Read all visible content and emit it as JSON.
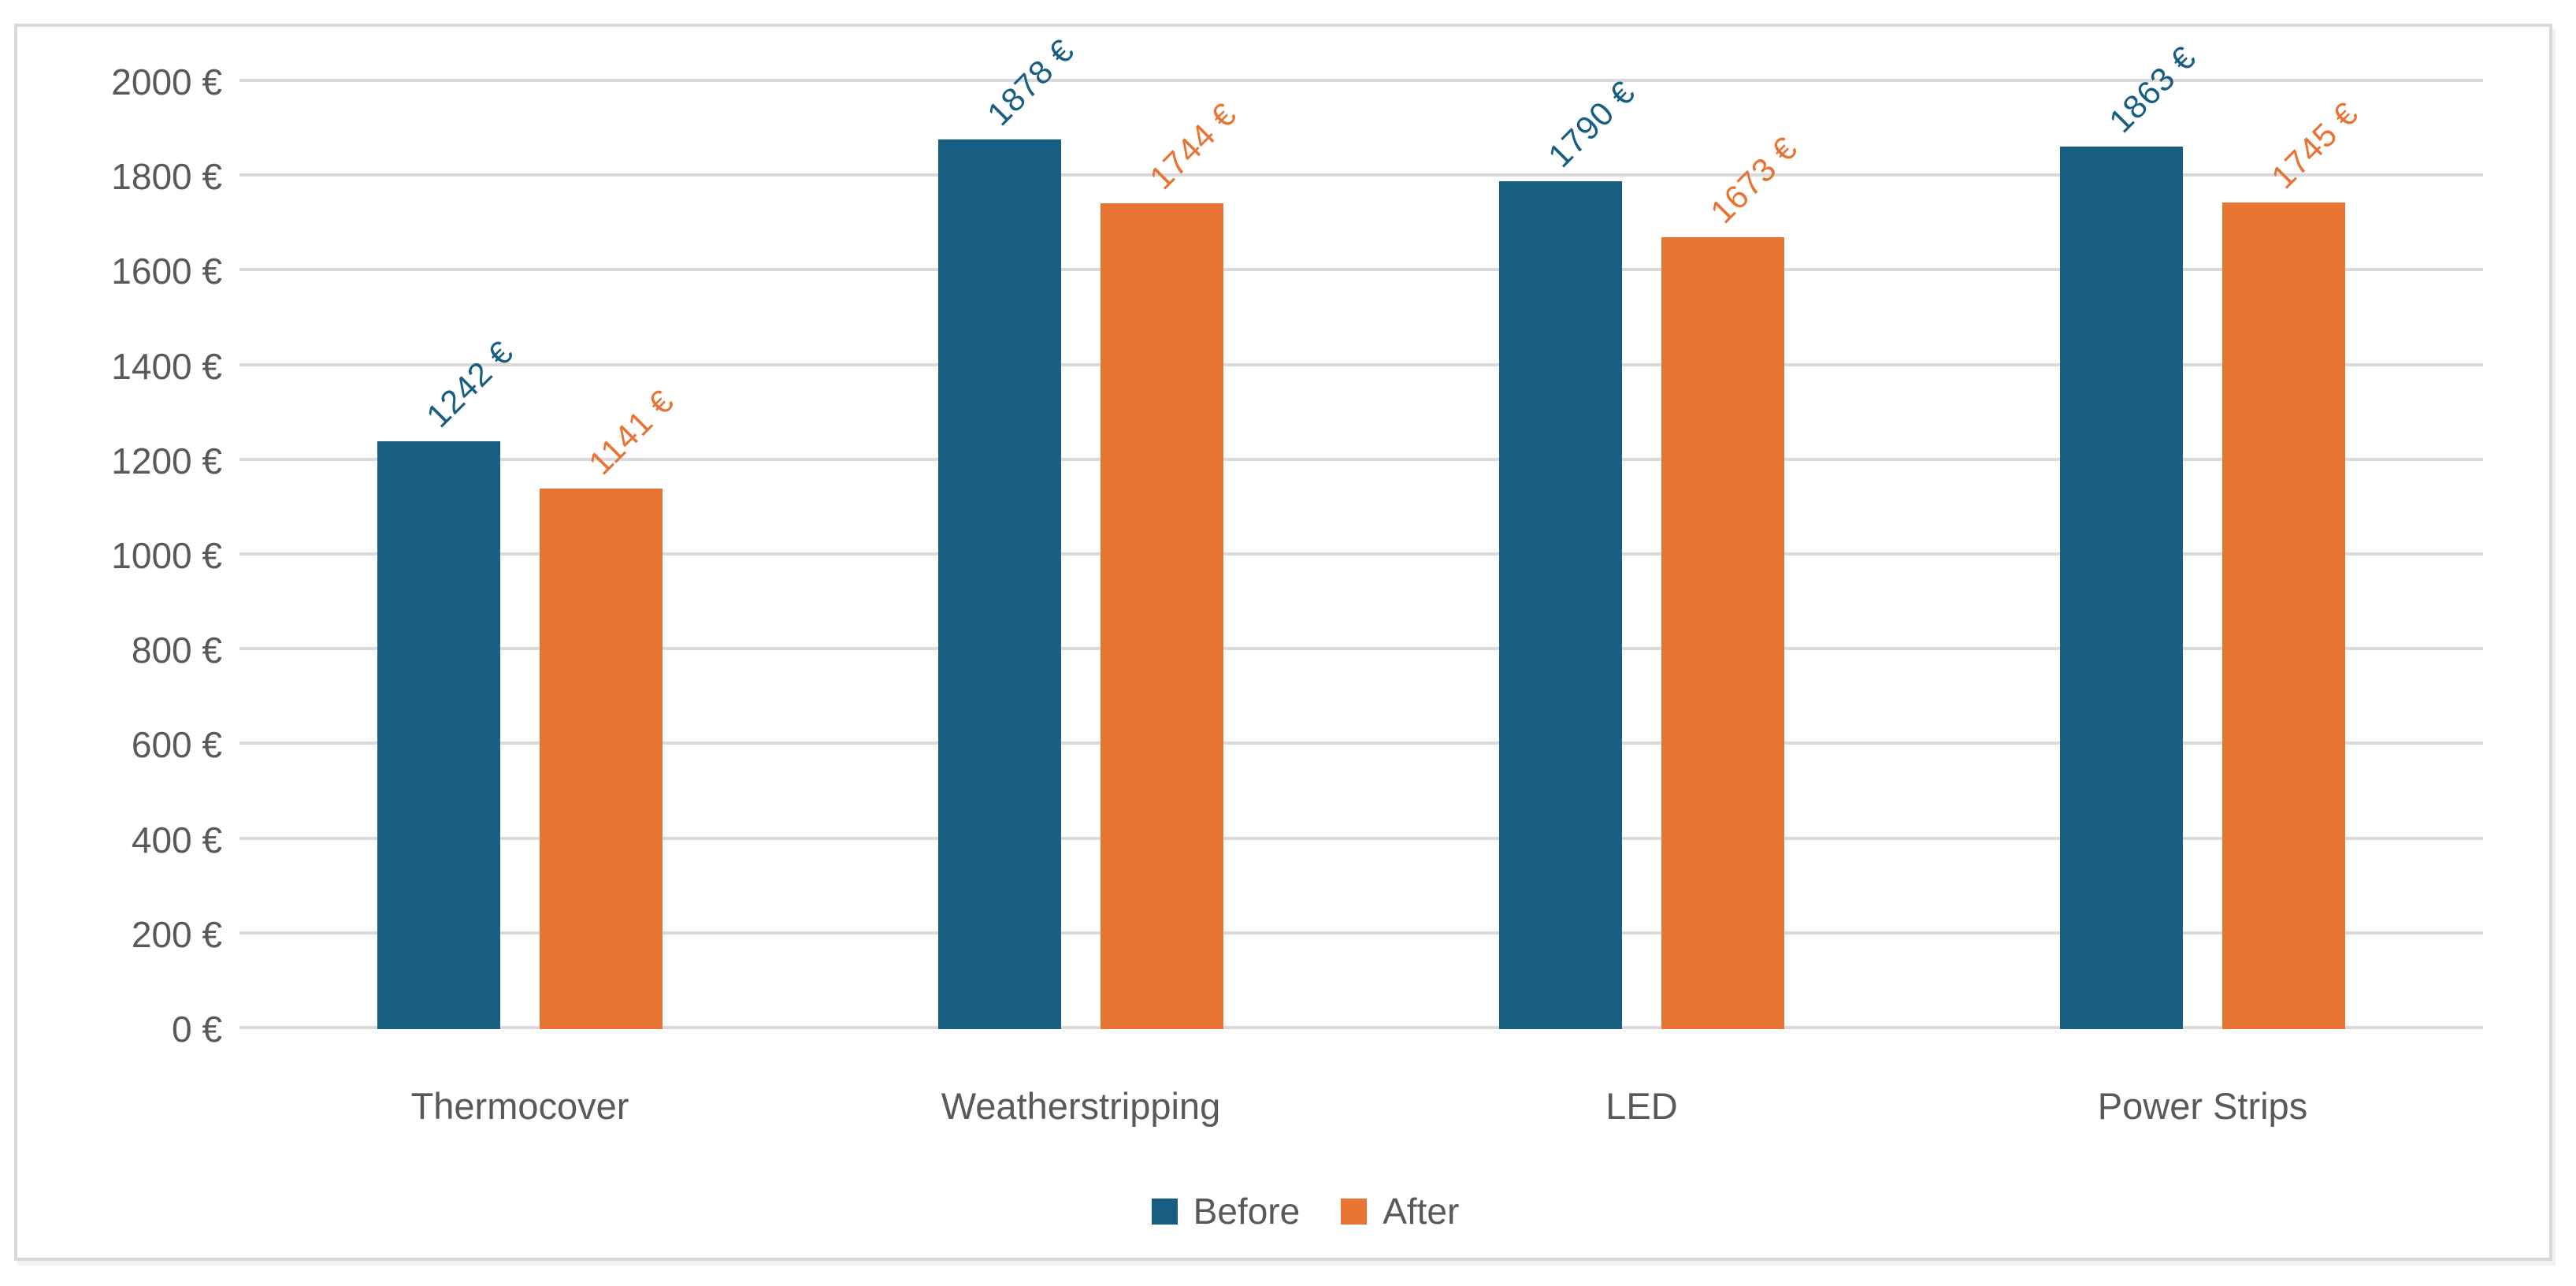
{
  "chart_data": {
    "type": "bar",
    "categories": [
      "Thermocover",
      "Weatherstripping",
      "LED",
      "Power Strips"
    ],
    "series": [
      {
        "name": "Before",
        "color": "#175E82",
        "values": [
          1242,
          1878,
          1790,
          1863
        ],
        "data_labels": [
          "1242 €",
          "1878 €",
          "1790 €",
          "1863 €"
        ]
      },
      {
        "name": "After",
        "color": "#E87434",
        "values": [
          1141,
          1744,
          1673,
          1745
        ],
        "data_labels": [
          "1141 €",
          "1744 €",
          "1673 €",
          "1745 €"
        ]
      }
    ],
    "y_axis": {
      "min": 0,
      "max": 2000,
      "step": 200,
      "suffix": " €",
      "tick_labels": [
        "0 €",
        "200 €",
        "400 €",
        "600 €",
        "800 €",
        "1000 €",
        "1200 €",
        "1400 €",
        "1600 €",
        "1800 €",
        "2000 €"
      ]
    },
    "legend": {
      "position": "bottom",
      "entries": [
        "Before",
        "After"
      ]
    },
    "layout": {
      "grid": true,
      "data_label_rotation_deg": -45
    },
    "colors": {
      "grid": "#D9D9D9",
      "frame_border": "#D9D9D9",
      "axis_text": "#595959",
      "background": "#FFFFFF"
    }
  }
}
